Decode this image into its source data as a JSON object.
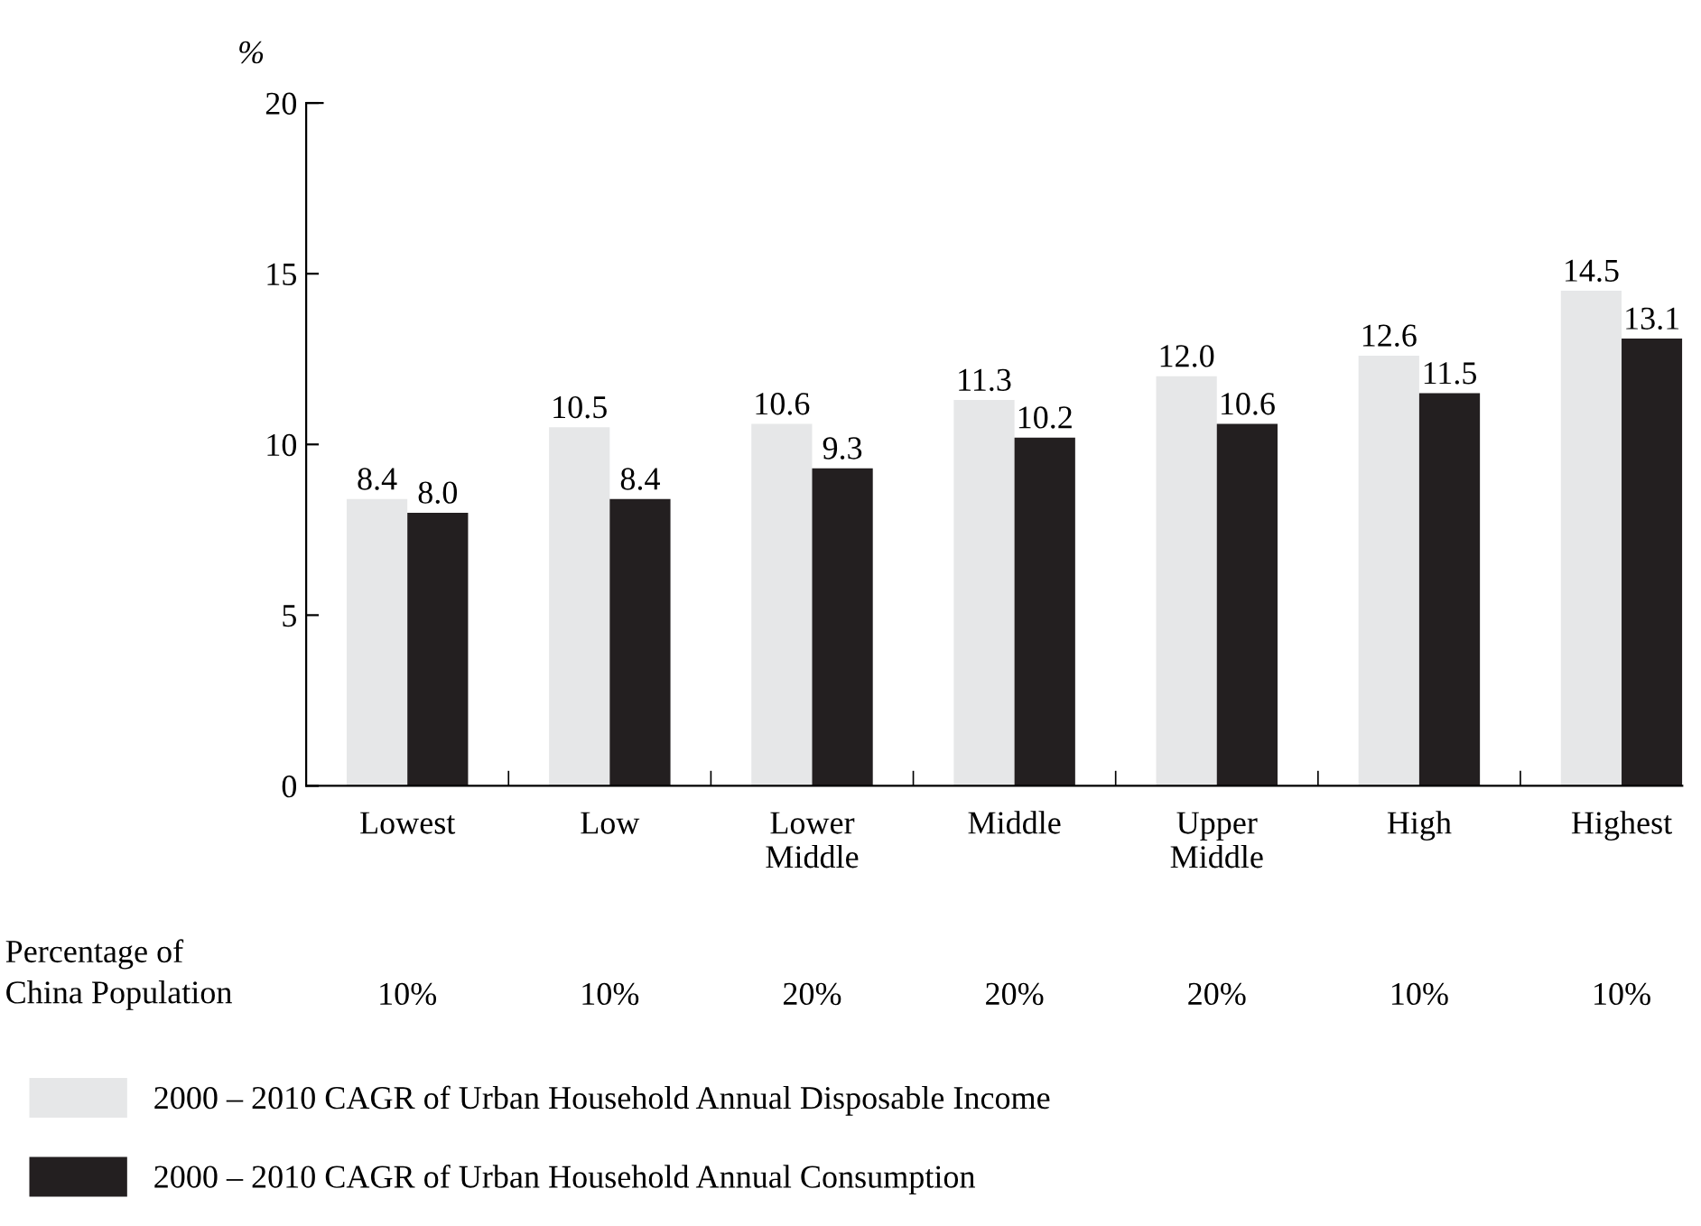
{
  "chart_data": {
    "type": "bar",
    "ylabel": "%",
    "categories": [
      "Lowest",
      "Low",
      "Lower\nMiddle",
      "Middle",
      "Upper\nMiddle",
      "High",
      "Highest"
    ],
    "series": [
      {
        "name": "2000 – 2010 CAGR of Urban Household Annual Disposable Income",
        "color": "#e6e7e8",
        "values": [
          8.4,
          10.5,
          10.6,
          11.3,
          12.0,
          12.6,
          14.5
        ],
        "value_labels": [
          "8.4",
          "10.5",
          "10.6",
          "11.3",
          "12.0",
          "12.6",
          "14.5"
        ]
      },
      {
        "name": "2000 – 2010 CAGR of Urban Household Annual Consumption",
        "color": "#231f20",
        "values": [
          8.0,
          8.4,
          9.3,
          10.2,
          10.6,
          11.5,
          13.1
        ],
        "value_labels": [
          "8.0",
          "8.4",
          "9.3",
          "10.2",
          "10.6",
          "11.5",
          "13.1"
        ]
      }
    ],
    "ylim": [
      0,
      20
    ],
    "yticks": [
      0,
      5,
      10,
      15,
      20
    ],
    "grid": false,
    "legend": "bottom left",
    "annotations": [
      "Percentage of\nChina Population",
      "10%",
      "10%",
      "20%",
      "20%",
      "20%",
      "10%",
      "10%"
    ]
  }
}
